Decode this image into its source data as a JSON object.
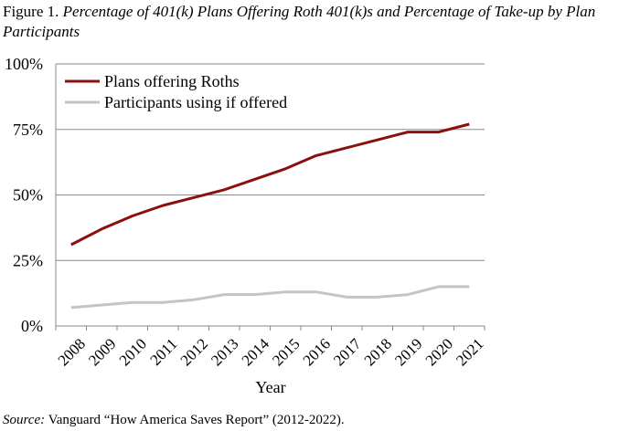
{
  "figure": {
    "label": "Figure 1.",
    "title": "Percentage of 401(k) Plans Offering Roth 401(k)s and Percentage of Take-up by Plan Participants"
  },
  "source": {
    "label": "Source:",
    "text": "Vanguard “How America Saves Report” (2012-2022)."
  },
  "chart_data": {
    "type": "line",
    "title": "",
    "xlabel": "Year",
    "ylabel": "",
    "x": [
      "2008",
      "2009",
      "2010",
      "2011",
      "2012",
      "2013",
      "2014",
      "2015",
      "2016",
      "2017",
      "2018",
      "2019",
      "2020",
      "2021"
    ],
    "ylim": [
      0,
      100
    ],
    "yticks": [
      "0%",
      "25%",
      "50%",
      "75%",
      "100%"
    ],
    "grid": true,
    "legend": "top-left",
    "series": [
      {
        "name": "Plans offering Roths",
        "color": "#8b0f0f",
        "values": [
          31,
          37,
          42,
          46,
          49,
          52,
          56,
          60,
          65,
          68,
          71,
          74,
          74,
          77
        ]
      },
      {
        "name": "Participants using if offered",
        "color": "#c4c4c4",
        "values": [
          7,
          8,
          9,
          9,
          10,
          12,
          12,
          13,
          13,
          11,
          11,
          12,
          15,
          15
        ]
      }
    ]
  }
}
